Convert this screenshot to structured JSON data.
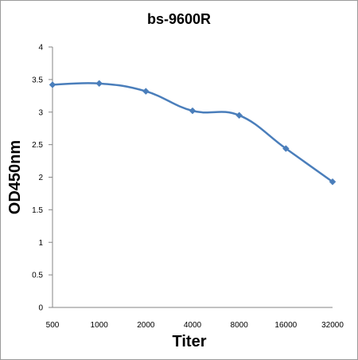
{
  "chart_data": {
    "type": "line",
    "title": "bs-9600R",
    "xlabel": "Titer",
    "ylabel": "OD450nm",
    "categories": [
      "500",
      "1000",
      "2000",
      "4000",
      "8000",
      "16000",
      "32000"
    ],
    "series": [
      {
        "values": [
          3.42,
          3.44,
          3.32,
          3.02,
          2.95,
          2.44,
          1.93
        ],
        "color": "#4a7ebb",
        "marker": "diamond",
        "smooth": true
      }
    ],
    "ylim": [
      0,
      4
    ],
    "yticks": [
      0,
      0.5,
      1,
      1.5,
      2,
      2.5,
      3,
      3.5,
      4
    ],
    "grid": false,
    "legend": "none"
  }
}
